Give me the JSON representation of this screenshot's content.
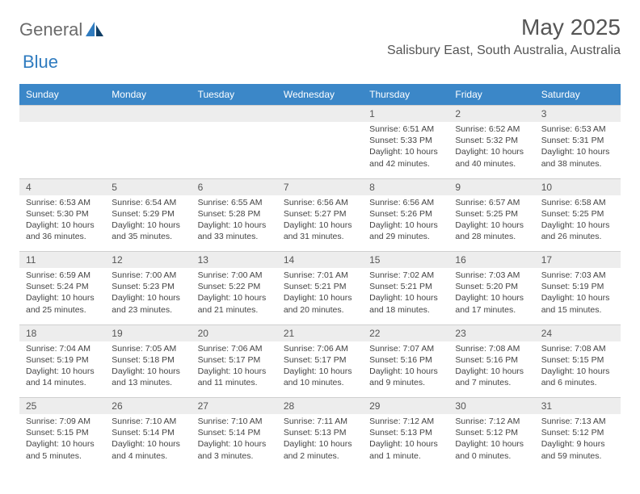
{
  "logo": {
    "text_left": "General",
    "text_right": "Blue"
  },
  "title": "May 2025",
  "location": "Salisbury East, South Australia, Australia",
  "colors": {
    "header_bg": "#3b87c8",
    "header_text": "#ffffff",
    "daynum_bg": "#ededed",
    "border": "#cfcfcf",
    "text": "#444444",
    "title_text": "#555555",
    "logo_gray": "#6b6b6b",
    "logo_blue": "#2f7bbf"
  },
  "weekdays": [
    "Sunday",
    "Monday",
    "Tuesday",
    "Wednesday",
    "Thursday",
    "Friday",
    "Saturday"
  ],
  "weeks": [
    [
      null,
      null,
      null,
      null,
      {
        "d": "1",
        "sr": "6:51 AM",
        "ss": "5:33 PM",
        "dl": "10 hours and 42 minutes."
      },
      {
        "d": "2",
        "sr": "6:52 AM",
        "ss": "5:32 PM",
        "dl": "10 hours and 40 minutes."
      },
      {
        "d": "3",
        "sr": "6:53 AM",
        "ss": "5:31 PM",
        "dl": "10 hours and 38 minutes."
      }
    ],
    [
      {
        "d": "4",
        "sr": "6:53 AM",
        "ss": "5:30 PM",
        "dl": "10 hours and 36 minutes."
      },
      {
        "d": "5",
        "sr": "6:54 AM",
        "ss": "5:29 PM",
        "dl": "10 hours and 35 minutes."
      },
      {
        "d": "6",
        "sr": "6:55 AM",
        "ss": "5:28 PM",
        "dl": "10 hours and 33 minutes."
      },
      {
        "d": "7",
        "sr": "6:56 AM",
        "ss": "5:27 PM",
        "dl": "10 hours and 31 minutes."
      },
      {
        "d": "8",
        "sr": "6:56 AM",
        "ss": "5:26 PM",
        "dl": "10 hours and 29 minutes."
      },
      {
        "d": "9",
        "sr": "6:57 AM",
        "ss": "5:25 PM",
        "dl": "10 hours and 28 minutes."
      },
      {
        "d": "10",
        "sr": "6:58 AM",
        "ss": "5:25 PM",
        "dl": "10 hours and 26 minutes."
      }
    ],
    [
      {
        "d": "11",
        "sr": "6:59 AM",
        "ss": "5:24 PM",
        "dl": "10 hours and 25 minutes."
      },
      {
        "d": "12",
        "sr": "7:00 AM",
        "ss": "5:23 PM",
        "dl": "10 hours and 23 minutes."
      },
      {
        "d": "13",
        "sr": "7:00 AM",
        "ss": "5:22 PM",
        "dl": "10 hours and 21 minutes."
      },
      {
        "d": "14",
        "sr": "7:01 AM",
        "ss": "5:21 PM",
        "dl": "10 hours and 20 minutes."
      },
      {
        "d": "15",
        "sr": "7:02 AM",
        "ss": "5:21 PM",
        "dl": "10 hours and 18 minutes."
      },
      {
        "d": "16",
        "sr": "7:03 AM",
        "ss": "5:20 PM",
        "dl": "10 hours and 17 minutes."
      },
      {
        "d": "17",
        "sr": "7:03 AM",
        "ss": "5:19 PM",
        "dl": "10 hours and 15 minutes."
      }
    ],
    [
      {
        "d": "18",
        "sr": "7:04 AM",
        "ss": "5:19 PM",
        "dl": "10 hours and 14 minutes."
      },
      {
        "d": "19",
        "sr": "7:05 AM",
        "ss": "5:18 PM",
        "dl": "10 hours and 13 minutes."
      },
      {
        "d": "20",
        "sr": "7:06 AM",
        "ss": "5:17 PM",
        "dl": "10 hours and 11 minutes."
      },
      {
        "d": "21",
        "sr": "7:06 AM",
        "ss": "5:17 PM",
        "dl": "10 hours and 10 minutes."
      },
      {
        "d": "22",
        "sr": "7:07 AM",
        "ss": "5:16 PM",
        "dl": "10 hours and 9 minutes."
      },
      {
        "d": "23",
        "sr": "7:08 AM",
        "ss": "5:16 PM",
        "dl": "10 hours and 7 minutes."
      },
      {
        "d": "24",
        "sr": "7:08 AM",
        "ss": "5:15 PM",
        "dl": "10 hours and 6 minutes."
      }
    ],
    [
      {
        "d": "25",
        "sr": "7:09 AM",
        "ss": "5:15 PM",
        "dl": "10 hours and 5 minutes."
      },
      {
        "d": "26",
        "sr": "7:10 AM",
        "ss": "5:14 PM",
        "dl": "10 hours and 4 minutes."
      },
      {
        "d": "27",
        "sr": "7:10 AM",
        "ss": "5:14 PM",
        "dl": "10 hours and 3 minutes."
      },
      {
        "d": "28",
        "sr": "7:11 AM",
        "ss": "5:13 PM",
        "dl": "10 hours and 2 minutes."
      },
      {
        "d": "29",
        "sr": "7:12 AM",
        "ss": "5:13 PM",
        "dl": "10 hours and 1 minute."
      },
      {
        "d": "30",
        "sr": "7:12 AM",
        "ss": "5:12 PM",
        "dl": "10 hours and 0 minutes."
      },
      {
        "d": "31",
        "sr": "7:13 AM",
        "ss": "5:12 PM",
        "dl": "9 hours and 59 minutes."
      }
    ]
  ],
  "labels": {
    "sunrise": "Sunrise: ",
    "sunset": "Sunset: ",
    "daylight": "Daylight: "
  }
}
